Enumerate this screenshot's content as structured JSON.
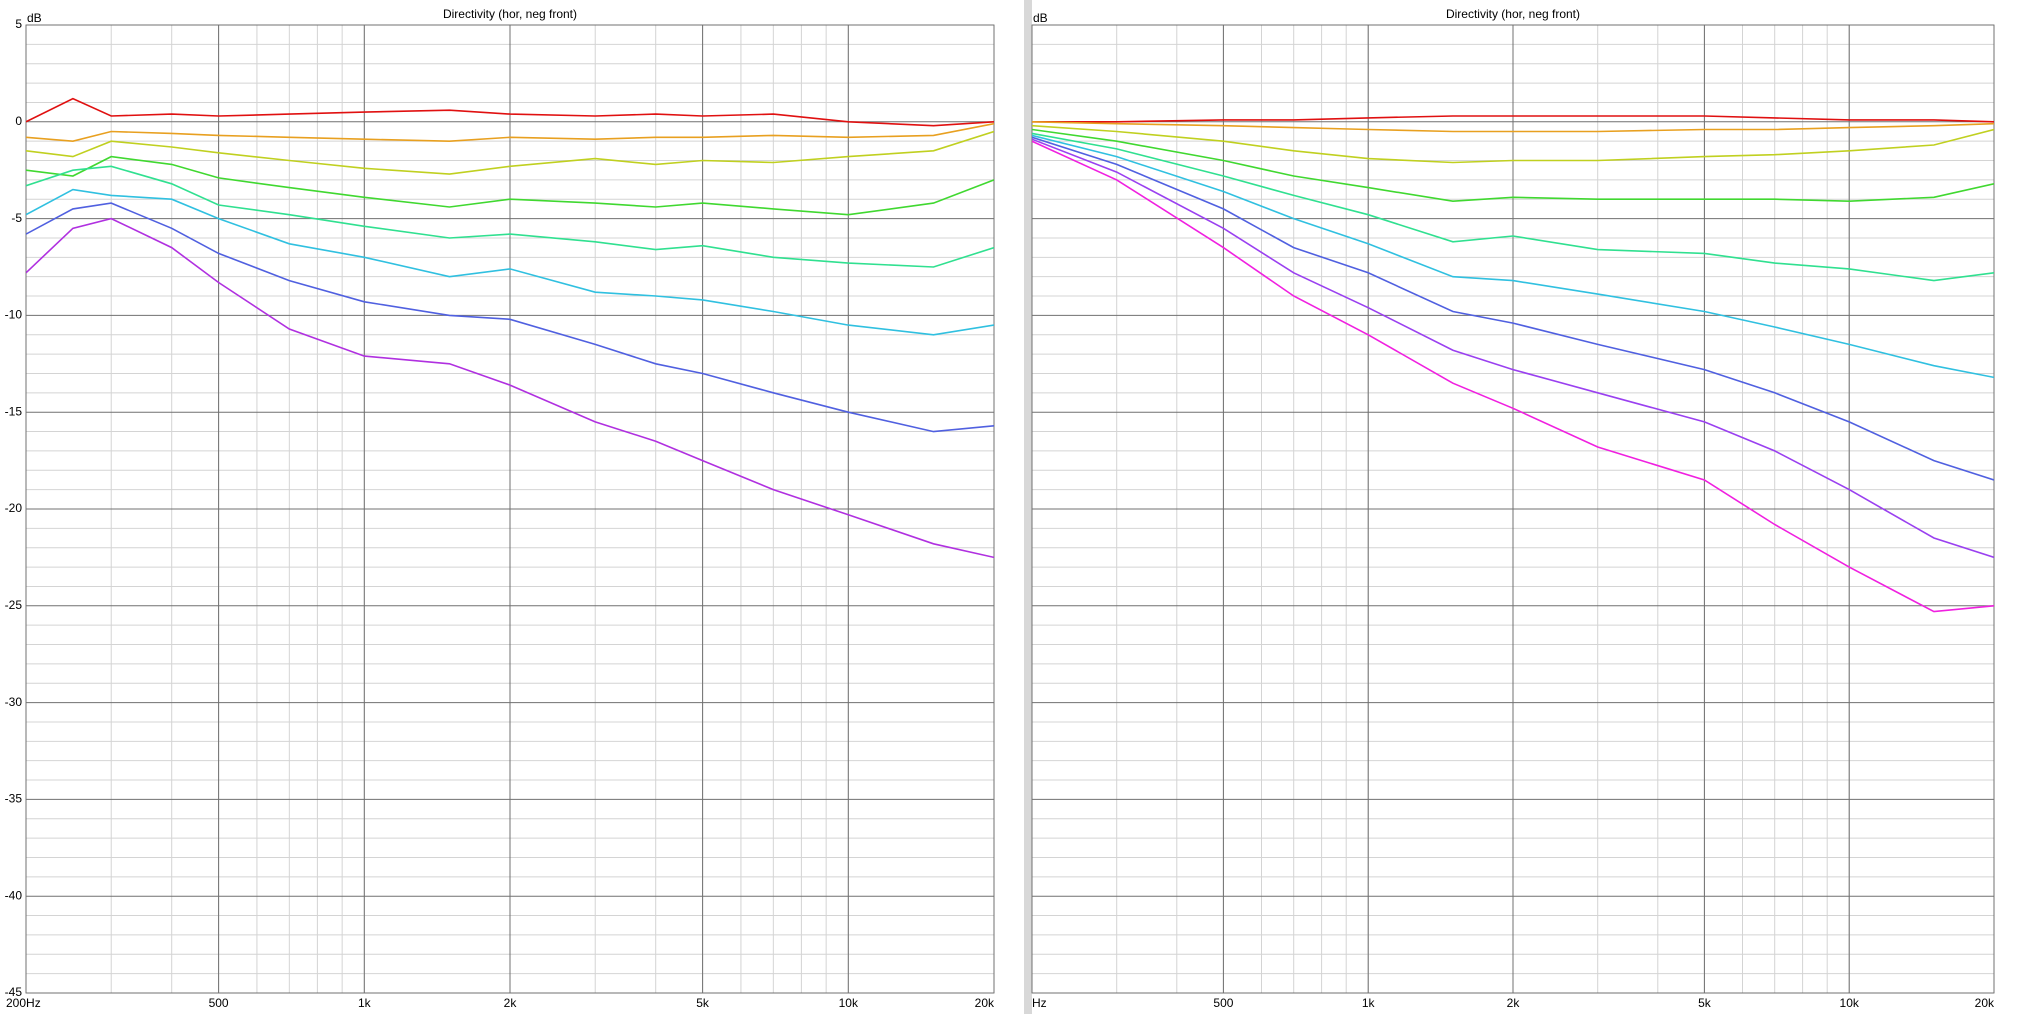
{
  "chart_data": [
    {
      "type": "line",
      "title": "Directivity (hor, neg front)",
      "ylabel": "dB",
      "xscale": "log",
      "grid": true,
      "show_ytick_labels": true,
      "xlim": [
        200,
        20000
      ],
      "ylim": [
        -45,
        5
      ],
      "xticks": [
        {
          "value": 200,
          "label": "200Hz"
        },
        500,
        {
          "value": 1000,
          "label": "1k"
        },
        {
          "value": 2000,
          "label": "2k"
        },
        {
          "value": 5000,
          "label": "5k"
        },
        {
          "value": 10000,
          "label": "10k"
        },
        {
          "value": 20000,
          "label": "20k"
        }
      ],
      "yticks": [
        5,
        0,
        -5,
        -10,
        -15,
        -20,
        -25,
        -30,
        -35,
        -40,
        -45
      ],
      "x": [
        200,
        250,
        300,
        400,
        500,
        700,
        1000,
        1500,
        2000,
        3000,
        4000,
        5000,
        7000,
        10000,
        15000,
        20000
      ],
      "series": [
        {
          "color": "#e01010",
          "values": [
            0,
            1.2,
            0.3,
            0.4,
            0.3,
            0.4,
            0.5,
            0.6,
            0.4,
            0.3,
            0.4,
            0.3,
            0.4,
            0,
            -0.2,
            0
          ]
        },
        {
          "color": "#e8a020",
          "values": [
            -0.8,
            -1,
            -0.5,
            -0.6,
            -0.7,
            -0.8,
            -0.9,
            -1.0,
            -0.8,
            -0.9,
            -0.8,
            -0.8,
            -0.7,
            -0.8,
            -0.7,
            -0.1
          ]
        },
        {
          "color": "#c0d020",
          "values": [
            -1.5,
            -1.8,
            -1,
            -1.3,
            -1.6,
            -2.0,
            -2.4,
            -2.7,
            -2.3,
            -1.9,
            -2.2,
            -2.0,
            -2.1,
            -1.8,
            -1.5,
            -0.5
          ]
        },
        {
          "color": "#40d830",
          "values": [
            -2.5,
            -2.8,
            -1.8,
            -2.2,
            -2.9,
            -3.4,
            -3.9,
            -4.4,
            -4.0,
            -4.2,
            -4.4,
            -4.2,
            -4.5,
            -4.8,
            -4.2,
            -3.0
          ]
        },
        {
          "color": "#30e090",
          "values": [
            -3.3,
            -2.5,
            -2.3,
            -3.2,
            -4.3,
            -4.8,
            -5.4,
            -6.0,
            -5.8,
            -6.2,
            -6.6,
            -6.4,
            -7.0,
            -7.3,
            -7.5,
            -6.5
          ]
        },
        {
          "color": "#30c0e0",
          "values": [
            -4.8,
            -3.5,
            -3.8,
            -4.0,
            -5.0,
            -6.3,
            -7.0,
            -8.0,
            -7.6,
            -8.8,
            -9.0,
            -9.2,
            -9.8,
            -10.5,
            -11.0,
            -10.5
          ]
        },
        {
          "color": "#5060e0",
          "values": [
            -5.8,
            -4.5,
            -4.2,
            -5.5,
            -6.8,
            -8.2,
            -9.3,
            -10.0,
            -10.2,
            -11.5,
            -12.5,
            -13.0,
            -14.0,
            -15.0,
            -16.0,
            -15.7
          ]
        },
        {
          "color": "#b030e0",
          "values": [
            -7.8,
            -5.5,
            -5.0,
            -6.5,
            -8.3,
            -10.7,
            -12.1,
            -12.5,
            -13.6,
            -15.5,
            -16.5,
            -17.5,
            -19.0,
            -20.3,
            -21.8,
            -22.5
          ]
        }
      ]
    },
    {
      "type": "line",
      "title": "Directivity (hor, neg front)",
      "ylabel": "dB",
      "xscale": "log",
      "grid": true,
      "show_ytick_labels": false,
      "xlim": [
        200,
        20000
      ],
      "ylim": [
        -45,
        5
      ],
      "xticks": [
        {
          "value": 200,
          "label": "Hz"
        },
        500,
        {
          "value": 1000,
          "label": "1k"
        },
        {
          "value": 2000,
          "label": "2k"
        },
        {
          "value": 5000,
          "label": "5k"
        },
        {
          "value": 10000,
          "label": "10k"
        },
        {
          "value": 20000,
          "label": "20k"
        }
      ],
      "yticks": [
        5,
        0,
        -5,
        -10,
        -15,
        -20,
        -25,
        -30,
        -35,
        -40,
        -45
      ],
      "x": [
        200,
        300,
        500,
        700,
        1000,
        1500,
        2000,
        3000,
        5000,
        7000,
        10000,
        15000,
        20000
      ],
      "series": [
        {
          "color": "#e01010",
          "values": [
            0,
            0,
            0.1,
            0.1,
            0.2,
            0.3,
            0.3,
            0.3,
            0.3,
            0.2,
            0.1,
            0.1,
            0
          ]
        },
        {
          "color": "#e8a020",
          "values": [
            0,
            -0.1,
            -0.2,
            -0.3,
            -0.4,
            -0.5,
            -0.5,
            -0.5,
            -0.4,
            -0.4,
            -0.3,
            -0.2,
            -0.1
          ]
        },
        {
          "color": "#c0d020",
          "values": [
            -0.2,
            -0.5,
            -1.0,
            -1.5,
            -1.9,
            -2.1,
            -2.0,
            -2.0,
            -1.8,
            -1.7,
            -1.5,
            -1.2,
            -0.4
          ]
        },
        {
          "color": "#40d830",
          "values": [
            -0.4,
            -1.0,
            -2.0,
            -2.8,
            -3.4,
            -4.1,
            -3.9,
            -4.0,
            -4.0,
            -4.0,
            -4.1,
            -3.9,
            -3.2
          ]
        },
        {
          "color": "#30e090",
          "values": [
            -0.6,
            -1.4,
            -2.8,
            -3.8,
            -4.8,
            -6.2,
            -5.9,
            -6.6,
            -6.8,
            -7.3,
            -7.6,
            -8.2,
            -7.8
          ]
        },
        {
          "color": "#30c0e0",
          "values": [
            -0.7,
            -1.8,
            -3.6,
            -5.0,
            -6.3,
            -8.0,
            -8.2,
            -8.9,
            -9.8,
            -10.6,
            -11.5,
            -12.6,
            -13.2
          ]
        },
        {
          "color": "#5060e0",
          "values": [
            -0.8,
            -2.2,
            -4.5,
            -6.5,
            -7.8,
            -9.8,
            -10.4,
            -11.5,
            -12.8,
            -14.0,
            -15.5,
            -17.5,
            -18.5
          ]
        },
        {
          "color": "#9a40f0",
          "values": [
            -0.9,
            -2.6,
            -5.5,
            -7.8,
            -9.6,
            -11.8,
            -12.8,
            -14.0,
            -15.5,
            -17.0,
            -19.0,
            -21.5,
            -22.5
          ]
        },
        {
          "color": "#f020e0",
          "values": [
            -1.0,
            -3.0,
            -6.5,
            -9.0,
            -11.0,
            -13.5,
            -14.8,
            -16.8,
            -18.5,
            -20.8,
            -23.0,
            -25.3,
            -25.0
          ]
        }
      ]
    }
  ]
}
